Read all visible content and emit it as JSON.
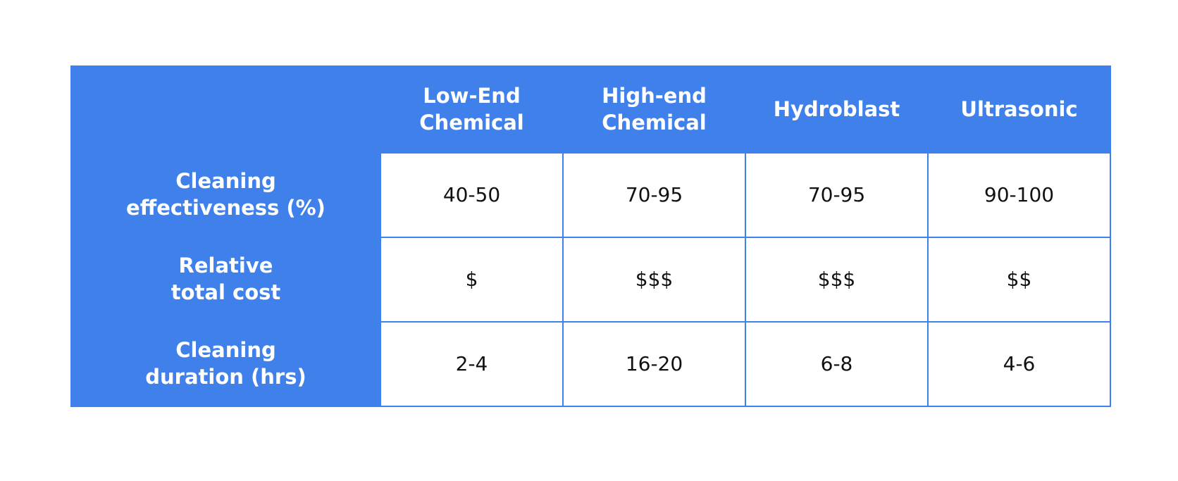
{
  "table": {
    "columns": [
      "Low-End\nChemical",
      "High-end\nChemical",
      "Hydroblast",
      "Ultrasonic"
    ],
    "rows": [
      [
        "Cleaning\neffectiveness (%)",
        "40-50",
        "70-95",
        "70-95",
        "90-100"
      ],
      [
        "Relative\ntotal cost",
        "$",
        "$$$",
        "$$$",
        "$$"
      ],
      [
        "Cleaning\nduration (hrs)",
        "2-4",
        "16-20",
        "6-8",
        "4-6"
      ]
    ]
  }
}
